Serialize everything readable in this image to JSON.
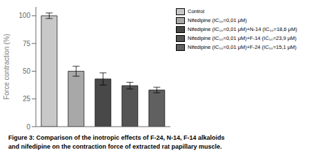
{
  "chart_data": {
    "type": "bar",
    "categories": [
      "Control",
      "Nifedipine (IC₅₀=0,01 μM)",
      "Nifedipine (IC₅₀=0,01 μM)+N-14 (IC₅₀=18,6 μM)",
      "Nifedipine (IC₅₀=0,01 μM)+F-14 (IC₅₀=23,9 μM)",
      "Nifedipine (IC₅₀=0,01 μM)+F-24 (IC₅₀=15,1 μM)"
    ],
    "values": [
      100,
      50,
      43,
      37,
      33
    ],
    "errors": [
      2.5,
      4.5,
      5.5,
      3.0,
      2.5
    ],
    "colors": [
      "#c8c8c8",
      "#a8a8a8",
      "#484848",
      "#545454",
      "#606060"
    ],
    "ylabel": "Force contraction (%)",
    "ylim": [
      0,
      108
    ],
    "yticks": [
      0,
      25,
      50,
      75,
      100
    ],
    "grid": false,
    "legend": "right",
    "tick_labels": "y",
    "annotations": [
      "Figure 3: Comparison of the inotropic effects of F-24, N-14, F-14 alkaloids",
      "and nifedipine on the contraction force of extracted rat papillary muscle."
    ]
  }
}
